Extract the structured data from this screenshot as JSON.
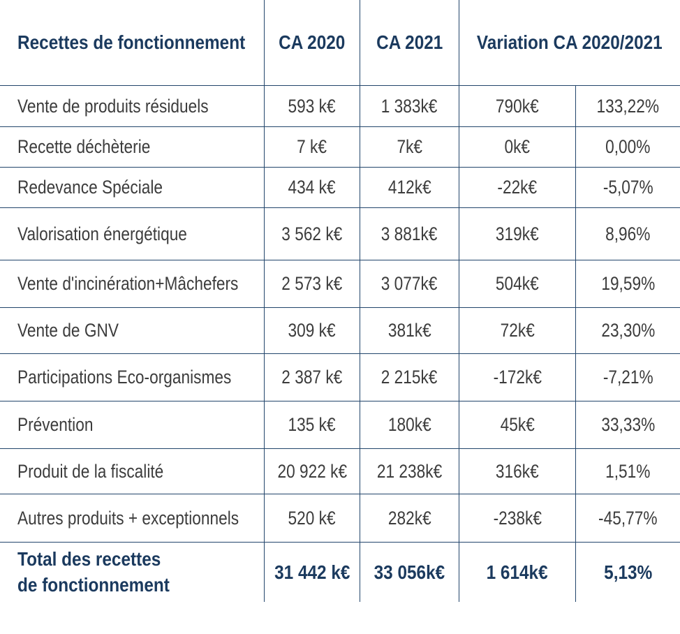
{
  "chart_data": {
    "type": "table",
    "title": "Recettes de fonctionnement",
    "columns": [
      "Recettes de fonctionnement",
      "CA 2020",
      "CA 2021",
      "Variation CA 2020/2021 (k€)",
      "Variation CA 2020/2021 (%)"
    ],
    "header": {
      "label": "Recettes de fonctionnement",
      "ca_2020": "CA 2020",
      "ca_2021": "CA 2021",
      "variation": "Variation CA 2020/2021"
    },
    "rows": [
      {
        "label": "Vente de produits résiduels",
        "ca_2020": "593 k€",
        "ca_2021": "1 383k€",
        "variation_k": "790k€",
        "variation_pct": "133,22%"
      },
      {
        "label": "Recette déchèterie",
        "ca_2020": "7 k€",
        "ca_2021": "7k€",
        "variation_k": "0k€",
        "variation_pct": "0,00%"
      },
      {
        "label": "Redevance Spéciale",
        "ca_2020": "434 k€",
        "ca_2021": "412k€",
        "variation_k": "-22k€",
        "variation_pct": "-5,07%"
      },
      {
        "label": "Valorisation énergétique",
        "ca_2020": "3 562 k€",
        "ca_2021": "3 881k€",
        "variation_k": "319k€",
        "variation_pct": "8,96%"
      },
      {
        "label": "Vente d'incinération+Mâchefers",
        "ca_2020": "2 573 k€",
        "ca_2021": "3 077k€",
        "variation_k": "504k€",
        "variation_pct": "19,59%"
      },
      {
        "label": "Vente de GNV",
        "ca_2020": "309 k€",
        "ca_2021": "381k€",
        "variation_k": "72k€",
        "variation_pct": "23,30%"
      },
      {
        "label": "Participations Eco-organismes",
        "ca_2020": "2 387 k€",
        "ca_2021": "2 215k€",
        "variation_k": "-172k€",
        "variation_pct": "-7,21%"
      },
      {
        "label": "Prévention",
        "ca_2020": "135 k€",
        "ca_2021": "180k€",
        "variation_k": "45k€",
        "variation_pct": "33,33%"
      },
      {
        "label": "Produit de la fiscalité",
        "ca_2020": "20 922 k€",
        "ca_2021": "21 238k€",
        "variation_k": "316k€",
        "variation_pct": "1,51%"
      },
      {
        "label": "Autres produits + exceptionnels",
        "ca_2020": "520 k€",
        "ca_2021": "282k€",
        "variation_k": "-238k€",
        "variation_pct": "-45,77%"
      }
    ],
    "total": {
      "label_line1": "Total des recettes",
      "label_line2": "de fonctionnement",
      "ca_2020": "31 442 k€",
      "ca_2021": "33 056k€",
      "variation_k": "1 614k€",
      "variation_pct": "5,13%"
    }
  },
  "colors": {
    "navy_text": "#1b3a5e",
    "grid_line": "#22456b",
    "body_text": "#3c3c3c",
    "background": "#ffffff"
  }
}
